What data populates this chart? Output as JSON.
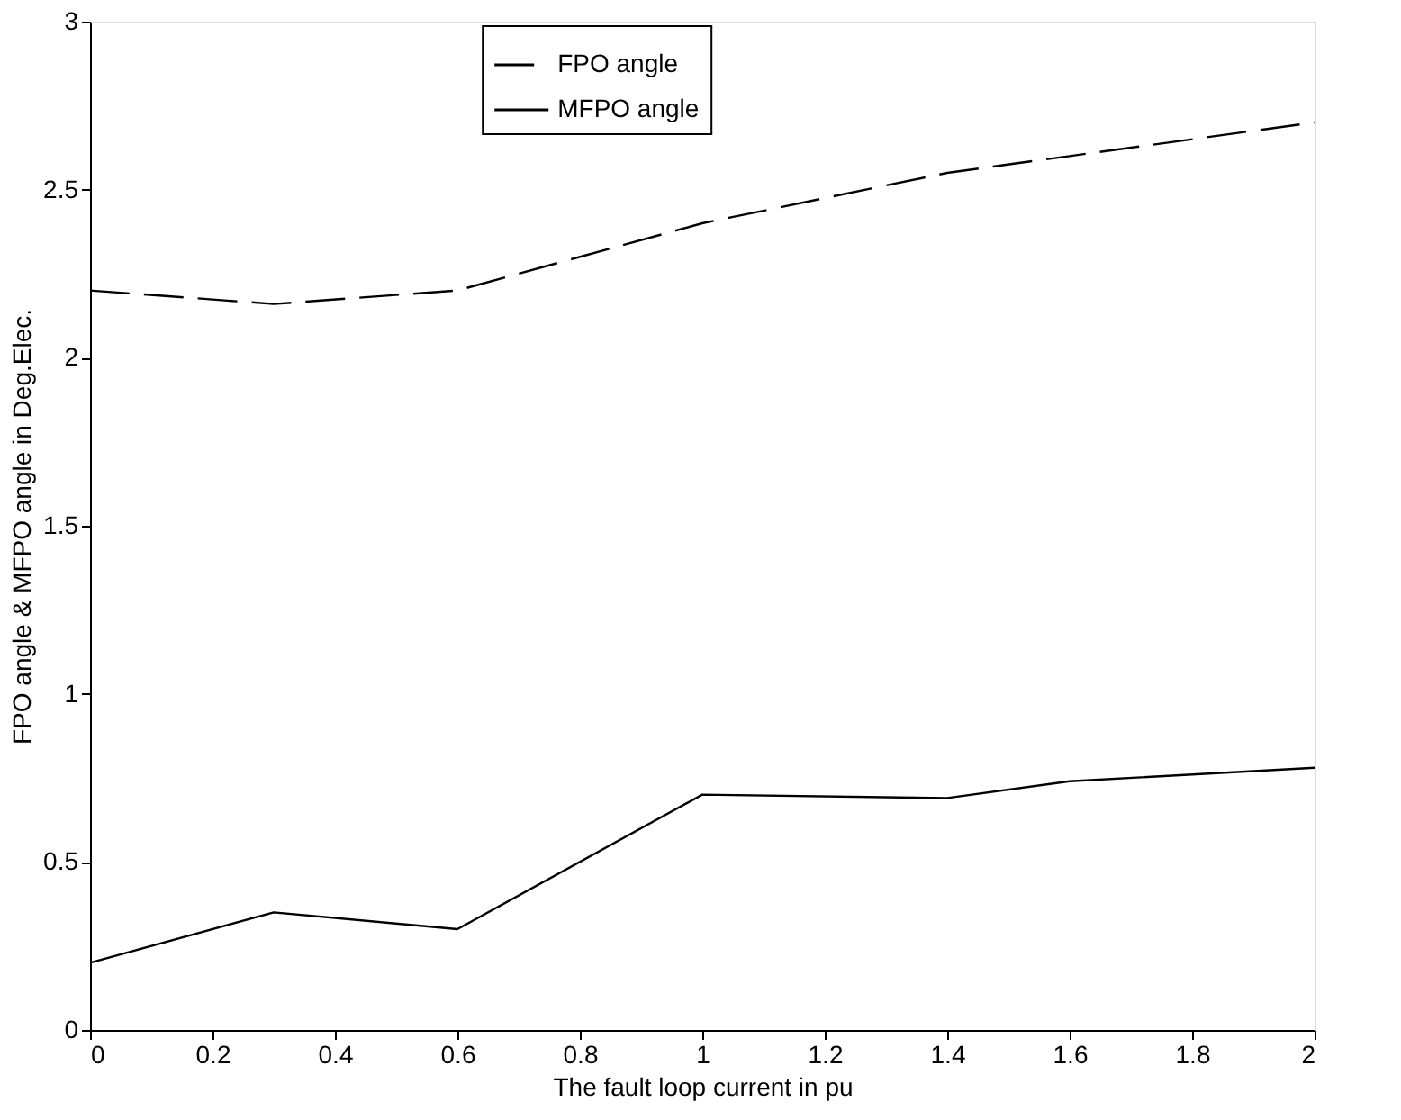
{
  "chart_data": {
    "type": "line",
    "xlabel": "The fault loop current in pu",
    "ylabel": "FPO angle & MFPO angle in Deg.Elec.",
    "x": [
      0,
      0.3,
      0.6,
      1,
      1.4,
      1.6,
      2
    ],
    "series": [
      {
        "name": "FPO angle",
        "color": "#000000",
        "line_style": "dashed",
        "values": [
          2.2,
          2.16,
          2.2,
          2.4,
          2.55,
          2.6,
          2.7
        ]
      },
      {
        "name": "MFPO angle",
        "color": "#000000",
        "line_style": "solid",
        "values": [
          0.2,
          0.35,
          0.3,
          0.7,
          0.69,
          0.74,
          0.78
        ]
      }
    ],
    "xlim": [
      0,
      2
    ],
    "xticks": [
      0,
      0.2,
      0.4,
      0.6,
      0.8,
      1,
      1.2,
      1.4,
      1.6,
      1.8,
      2
    ],
    "ylim": [
      0,
      3
    ],
    "yticks": [
      0,
      0.5,
      1,
      1.5,
      2,
      2.5,
      3
    ],
    "grid": false,
    "legend": "top",
    "marker": "none"
  }
}
